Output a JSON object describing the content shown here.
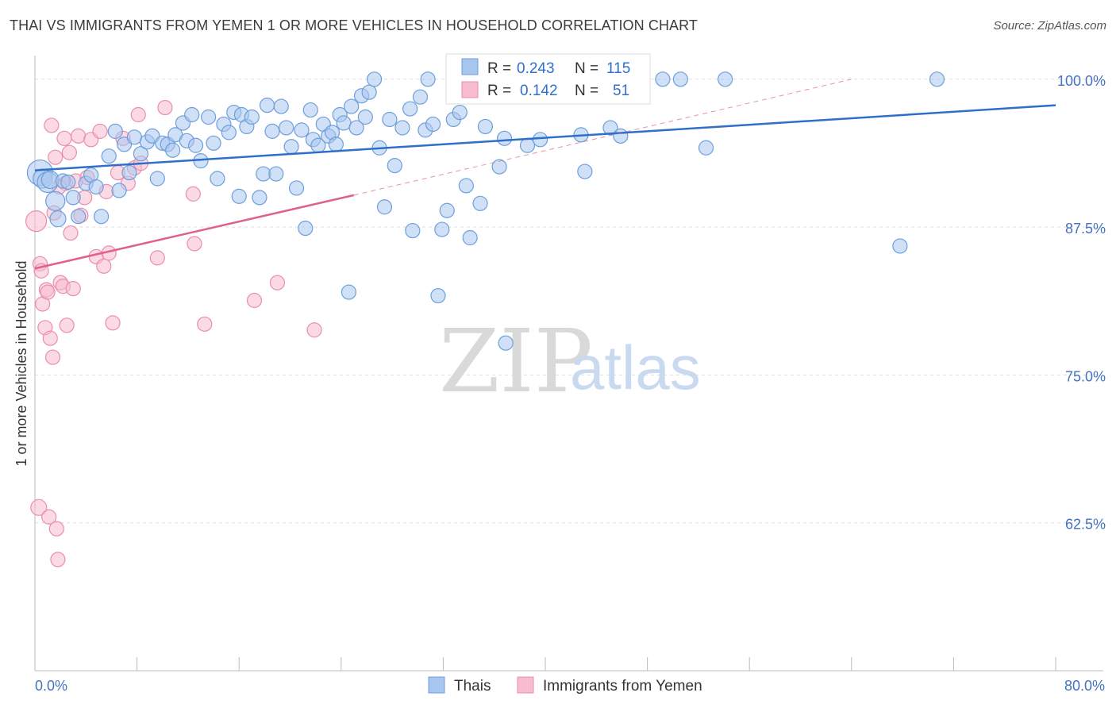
{
  "header": {
    "title": "THAI VS IMMIGRANTS FROM YEMEN 1 OR MORE VEHICLES IN HOUSEHOLD CORRELATION CHART",
    "source": "Source: ZipAtlas.com"
  },
  "watermark": {
    "zip": "ZIP",
    "atlas": "atlas"
  },
  "colors": {
    "thai_fill": "#a9c6ef",
    "thai_stroke": "#6d9fdb",
    "thai_line": "#2e6fca",
    "yemen_fill": "#f7bccf",
    "yemen_stroke": "#ea8eab",
    "yemen_line": "#e0608c",
    "grid": "#dddddd",
    "axis_text": "#4472c4"
  },
  "legend": {
    "row1": {
      "r_label": "R = ",
      "r_value": "0.243",
      "n_label": "N = ",
      "n_value": "115"
    },
    "row2": {
      "r_label": "R = ",
      "r_value": "0.142",
      "n_label": "N = ",
      "n_value": "51"
    }
  },
  "chart_data": {
    "type": "scatter",
    "title": "THAI VS IMMIGRANTS FROM YEMEN 1 OR MORE VEHICLES IN HOUSEHOLD CORRELATION CHART",
    "xlabel": "",
    "ylabel": "1 or more Vehicles in Household",
    "xlim": [
      0,
      80
    ],
    "ylim": [
      50,
      102
    ],
    "x_tick_labels": [
      "0.0%",
      "80.0%"
    ],
    "y_ticks": [
      62.5,
      75.0,
      87.5,
      100.0
    ],
    "y_tick_labels": [
      "62.5%",
      "75.0%",
      "87.5%",
      "100.0%"
    ],
    "grid": true,
    "legend_position": "top-center",
    "series": [
      {
        "name": "Thais",
        "r": 0.243,
        "n": 115,
        "trend": {
          "x": [
            0,
            80
          ],
          "y": [
            92.3,
            97.8
          ]
        },
        "points": [
          [
            0.4,
            92.1,
            16
          ],
          [
            0.6,
            91.6,
            12
          ],
          [
            1.0,
            91.3,
            13
          ],
          [
            1.2,
            91.5,
            11
          ],
          [
            1.6,
            89.7,
            12
          ],
          [
            1.8,
            88.2,
            10
          ],
          [
            2.2,
            91.4,
            9
          ],
          [
            2.6,
            91.3,
            9
          ],
          [
            3.0,
            90.0,
            9
          ],
          [
            3.4,
            88.4,
            9
          ],
          [
            4.0,
            91.2,
            9
          ],
          [
            4.4,
            91.9,
            9
          ],
          [
            4.8,
            90.9,
            9
          ],
          [
            5.2,
            88.4,
            9
          ],
          [
            5.8,
            93.5,
            9
          ],
          [
            6.3,
            95.6,
            9
          ],
          [
            6.6,
            90.6,
            9
          ],
          [
            7.0,
            94.5,
            9
          ],
          [
            7.4,
            92.1,
            9
          ],
          [
            7.8,
            95.1,
            9
          ],
          [
            8.3,
            93.7,
            9
          ],
          [
            8.8,
            94.7,
            9
          ],
          [
            9.2,
            95.2,
            9
          ],
          [
            9.6,
            91.6,
            9
          ],
          [
            10.0,
            94.6,
            9
          ],
          [
            10.4,
            94.5,
            9
          ],
          [
            10.8,
            94.0,
            9
          ],
          [
            11.0,
            95.3,
            9
          ],
          [
            11.6,
            96.3,
            9
          ],
          [
            11.9,
            94.8,
            9
          ],
          [
            12.3,
            97.0,
            9
          ],
          [
            12.6,
            94.4,
            9
          ],
          [
            13.0,
            93.1,
            9
          ],
          [
            13.6,
            96.8,
            9
          ],
          [
            14.0,
            94.6,
            9
          ],
          [
            14.3,
            91.6,
            9
          ],
          [
            14.8,
            96.2,
            9
          ],
          [
            15.2,
            95.5,
            9
          ],
          [
            15.6,
            97.2,
            9
          ],
          [
            16.0,
            90.1,
            9
          ],
          [
            16.2,
            97.0,
            9
          ],
          [
            16.6,
            96.0,
            9
          ],
          [
            17.0,
            96.8,
            9
          ],
          [
            17.6,
            90.0,
            9
          ],
          [
            17.9,
            92.0,
            9
          ],
          [
            18.2,
            97.8,
            9
          ],
          [
            18.6,
            95.6,
            9
          ],
          [
            18.9,
            92.0,
            9
          ],
          [
            19.3,
            97.7,
            9
          ],
          [
            19.7,
            95.9,
            9
          ],
          [
            20.1,
            94.3,
            9
          ],
          [
            20.5,
            90.8,
            9
          ],
          [
            20.9,
            95.7,
            9
          ],
          [
            21.2,
            87.4,
            9
          ],
          [
            21.6,
            97.4,
            9
          ],
          [
            21.8,
            94.9,
            9
          ],
          [
            22.2,
            94.4,
            9
          ],
          [
            22.6,
            96.2,
            9
          ],
          [
            23.0,
            95.2,
            9
          ],
          [
            23.3,
            95.5,
            9
          ],
          [
            23.6,
            94.5,
            9
          ],
          [
            23.9,
            97.0,
            9
          ],
          [
            24.2,
            96.3,
            9
          ],
          [
            24.6,
            82.0,
            9
          ],
          [
            24.8,
            97.7,
            9
          ],
          [
            25.2,
            95.9,
            9
          ],
          [
            25.6,
            98.6,
            9
          ],
          [
            25.9,
            96.8,
            9
          ],
          [
            26.2,
            98.9,
            9
          ],
          [
            26.6,
            100.0,
            9
          ],
          [
            27.0,
            94.2,
            9
          ],
          [
            27.4,
            89.2,
            9
          ],
          [
            27.8,
            96.6,
            9
          ],
          [
            28.2,
            92.7,
            9
          ],
          [
            28.8,
            95.9,
            9
          ],
          [
            29.4,
            97.5,
            9
          ],
          [
            29.6,
            87.2,
            9
          ],
          [
            30.2,
            98.5,
            9
          ],
          [
            30.6,
            95.7,
            9
          ],
          [
            30.8,
            100.0,
            9
          ],
          [
            31.2,
            96.2,
            9
          ],
          [
            31.6,
            81.7,
            9
          ],
          [
            31.9,
            87.3,
            9
          ],
          [
            32.3,
            88.9,
            9
          ],
          [
            32.8,
            96.6,
            9
          ],
          [
            33.3,
            97.2,
            9
          ],
          [
            33.8,
            91.0,
            9
          ],
          [
            34.1,
            86.6,
            9
          ],
          [
            34.9,
            89.5,
            9
          ],
          [
            35.3,
            96.0,
            9
          ],
          [
            36.2,
            100.0,
            9
          ],
          [
            36.4,
            92.6,
            9
          ],
          [
            36.8,
            95.0,
            9
          ],
          [
            36.9,
            77.7,
            9
          ],
          [
            38.6,
            94.4,
            9
          ],
          [
            39.6,
            94.9,
            9
          ],
          [
            40.2,
            100.0,
            9
          ],
          [
            41.6,
            100.0,
            9
          ],
          [
            42.8,
            95.3,
            9
          ],
          [
            43.1,
            92.2,
            9
          ],
          [
            45.1,
            95.9,
            9
          ],
          [
            45.9,
            95.2,
            9
          ],
          [
            47.2,
            99.6,
            9
          ],
          [
            49.2,
            100.0,
            9
          ],
          [
            50.6,
            100.0,
            9
          ],
          [
            52.6,
            94.2,
            9
          ],
          [
            54.1,
            100.0,
            9
          ],
          [
            67.8,
            85.9,
            9
          ],
          [
            70.7,
            100.0,
            9
          ]
        ]
      },
      {
        "name": "Immigrants from Yemen",
        "r": 0.142,
        "n": 51,
        "trend": {
          "x": [
            0,
            25
          ],
          "y": [
            84.0,
            90.2
          ]
        },
        "trend_ext": {
          "x": [
            25,
            64
          ],
          "y": [
            90.2,
            100.0
          ]
        },
        "points": [
          [
            0.1,
            88.0,
            13
          ],
          [
            0.3,
            63.8,
            10
          ],
          [
            0.4,
            84.4,
            9
          ],
          [
            0.5,
            83.8,
            9
          ],
          [
            0.6,
            81.0,
            9
          ],
          [
            0.8,
            79.0,
            9
          ],
          [
            0.9,
            82.2,
            9
          ],
          [
            1.0,
            82.0,
            9
          ],
          [
            1.1,
            63.0,
            9
          ],
          [
            1.2,
            78.1,
            9
          ],
          [
            1.3,
            96.1,
            9
          ],
          [
            1.4,
            76.5,
            9
          ],
          [
            1.5,
            88.7,
            9
          ],
          [
            1.6,
            93.4,
            9
          ],
          [
            1.7,
            62.0,
            9
          ],
          [
            1.8,
            59.4,
            9
          ],
          [
            2.0,
            82.8,
            9
          ],
          [
            2.2,
            82.5,
            9
          ],
          [
            2.4,
            91.2,
            9
          ],
          [
            2.5,
            79.2,
            9
          ],
          [
            2.7,
            93.8,
            9
          ],
          [
            2.8,
            87.0,
            9
          ],
          [
            3.0,
            82.3,
            9
          ],
          [
            3.2,
            91.4,
            9
          ],
          [
            3.4,
            95.2,
            9
          ],
          [
            3.6,
            88.5,
            9
          ],
          [
            3.9,
            90.0,
            9
          ],
          [
            4.1,
            91.7,
            9
          ],
          [
            4.4,
            94.9,
            9
          ],
          [
            4.8,
            85.0,
            9
          ],
          [
            5.1,
            95.6,
            9
          ],
          [
            5.4,
            84.2,
            9
          ],
          [
            5.8,
            85.3,
            9
          ],
          [
            6.1,
            79.4,
            9
          ],
          [
            6.5,
            92.1,
            9
          ],
          [
            6.9,
            95.0,
            9
          ],
          [
            7.3,
            91.2,
            9
          ],
          [
            7.8,
            92.5,
            9
          ],
          [
            8.1,
            97.0,
            9
          ],
          [
            8.3,
            92.9,
            9
          ],
          [
            9.6,
            84.9,
            9
          ],
          [
            10.2,
            97.6,
            9
          ],
          [
            12.4,
            90.3,
            9
          ],
          [
            12.5,
            86.1,
            9
          ],
          [
            13.3,
            79.3,
            9
          ],
          [
            17.2,
            81.3,
            9
          ],
          [
            19.0,
            82.8,
            9
          ],
          [
            21.9,
            78.8,
            9
          ],
          [
            2.3,
            95.0,
            9
          ],
          [
            5.6,
            90.5,
            9
          ],
          [
            1.9,
            90.9,
            9
          ]
        ]
      }
    ]
  },
  "bottom_legend": {
    "series1": "Thais",
    "series2": "Immigrants from Yemen"
  }
}
